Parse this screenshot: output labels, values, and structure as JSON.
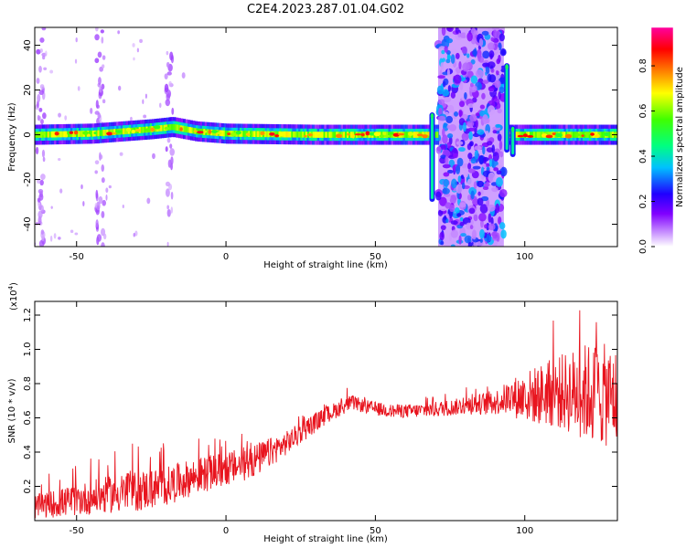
{
  "figure_title": "C2E4.2023.287.01.04.G02",
  "chart_data": [
    {
      "type": "heatmap",
      "xlabel": "Height of straight line (km)",
      "ylabel": "Frequency (Hz)",
      "xlim": [
        -64,
        131
      ],
      "ylim": [
        -50,
        48
      ],
      "x_ticks": [
        -50,
        0,
        50,
        100
      ],
      "y_ticks": [
        -40,
        -20,
        0,
        20,
        40
      ],
      "colorbar": {
        "label": "Normalized spectral amplitude",
        "range": [
          0,
          0.97
        ],
        "ticks": [
          0.0,
          0.2,
          0.4,
          0.6,
          0.8
        ],
        "colors": [
          "#ffffff",
          "#cc99ff",
          "#8000ff",
          "#2000ff",
          "#00c0ff",
          "#00ff80",
          "#40ff00",
          "#ffff00",
          "#ff8000",
          "#ff0000",
          "#ff00a0"
        ]
      },
      "main_band": {
        "center_hz": [
          [
            -64,
            0
          ],
          [
            -45,
            0.5
          ],
          [
            -35,
            1.5
          ],
          [
            -25,
            2.5
          ],
          [
            -18,
            3.5
          ],
          [
            -10,
            1.5
          ],
          [
            0,
            0.5
          ],
          [
            30,
            0
          ],
          [
            68,
            0
          ],
          [
            97,
            0
          ],
          [
            131,
            0
          ]
        ],
        "half_width_hz": 4.5,
        "peak_amplitude": 0.9
      },
      "broadband_region": {
        "x_range": [
          71,
          93
        ],
        "freq_range": [
          -50,
          48
        ],
        "amplitude_range": [
          0.1,
          0.65
        ]
      },
      "edge_spikes": [
        {
          "x": 69,
          "freq_range": [
            -30,
            10
          ]
        },
        {
          "x": 94,
          "freq_range": [
            -8,
            32
          ]
        },
        {
          "x": 96,
          "freq_range": [
            -10,
            4
          ]
        }
      ],
      "weak_vertical_streaks": [
        {
          "x": -62,
          "freq_range": [
            -50,
            48
          ]
        },
        {
          "x": -42,
          "freq_range": [
            -50,
            48
          ]
        },
        {
          "x": -19,
          "freq_range": [
            -35,
            38
          ]
        }
      ]
    },
    {
      "type": "line",
      "xlabel": "Height of straight line (km)",
      "ylabel": "SNR (10 * v/v)",
      "y_multiplier": "(x10",
      "y_multiplier_exp": "4",
      "y_multiplier_close": ")",
      "xlim": [
        -64,
        131
      ],
      "ylim": [
        0,
        1.28
      ],
      "x_ticks": [
        -50,
        0,
        50,
        100
      ],
      "y_ticks": [
        0.2,
        0.4,
        0.6,
        0.8,
        1.0,
        1.2
      ],
      "series": [
        {
          "color": "#e8141e",
          "trend": [
            [
              -64,
              0.08
            ],
            [
              -50,
              0.12
            ],
            [
              -40,
              0.15
            ],
            [
              -30,
              0.17
            ],
            [
              -20,
              0.2
            ],
            [
              -10,
              0.26
            ],
            [
              0,
              0.3
            ],
            [
              8,
              0.34
            ],
            [
              12,
              0.37
            ],
            [
              20,
              0.45
            ],
            [
              28,
              0.55
            ],
            [
              35,
              0.63
            ],
            [
              42,
              0.69
            ],
            [
              48,
              0.66
            ],
            [
              55,
              0.64
            ],
            [
              62,
              0.64
            ],
            [
              70,
              0.65
            ],
            [
              80,
              0.67
            ],
            [
              90,
              0.69
            ],
            [
              95,
              0.72
            ],
            [
              100,
              0.72
            ],
            [
              110,
              0.75
            ],
            [
              120,
              0.75
            ],
            [
              131,
              0.72
            ]
          ],
          "noise_amplitude": [
            [
              -64,
              0.07
            ],
            [
              -45,
              0.1
            ],
            [
              -30,
              0.12
            ],
            [
              0,
              0.1
            ],
            [
              10,
              0.1
            ],
            [
              20,
              0.07
            ],
            [
              35,
              0.05
            ],
            [
              45,
              0.04
            ],
            [
              60,
              0.04
            ],
            [
              80,
              0.05
            ],
            [
              92,
              0.08
            ],
            [
              100,
              0.15
            ],
            [
              112,
              0.22
            ],
            [
              122,
              0.3
            ],
            [
              131,
              0.3
            ]
          ],
          "sample_step_km": 0.15
        }
      ]
    }
  ]
}
